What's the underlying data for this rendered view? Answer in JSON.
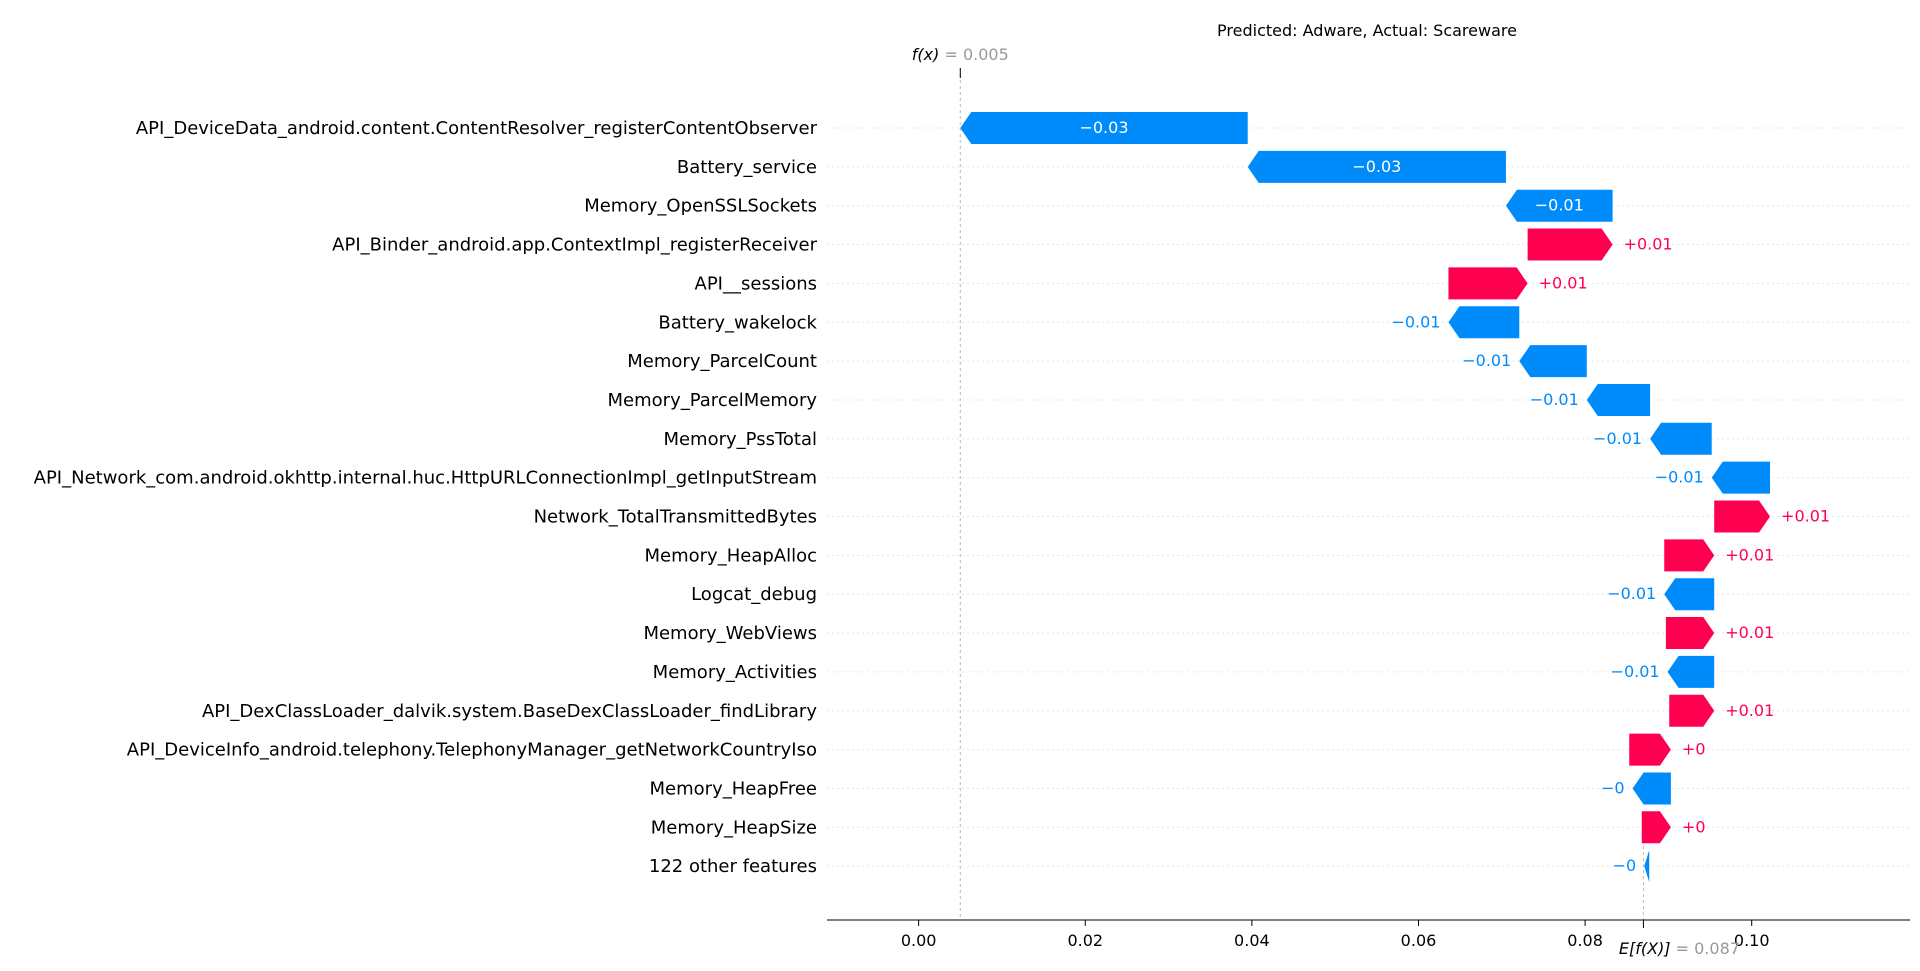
{
  "chart_data": {
    "type": "waterfall",
    "title": "Predicted: Adware, Actual: Scareware",
    "fx": {
      "label": "f(x)",
      "value": 0.005,
      "value_text": "0.005"
    },
    "base": {
      "label": "E[f(X)]",
      "value": 0.087,
      "value_text": "0.087"
    },
    "x_ticks": [
      0.0,
      0.02,
      0.04,
      0.06,
      0.08,
      0.1
    ],
    "x_tick_labels": [
      "0.00",
      "0.02",
      "0.04",
      "0.06",
      "0.08",
      "0.10"
    ],
    "xlim": [
      -0.011,
      0.119
    ],
    "colors": {
      "positive": "#ff0051",
      "negative": "#008bfb",
      "grid": "#cccccc",
      "muted": "#999999"
    },
    "features": [
      {
        "name": "API_DeviceData_android.content.ContentResolver_registerContentObserver",
        "start": 0.0395,
        "end": 0.005,
        "label": "−0.03"
      },
      {
        "name": "Battery_service",
        "start": 0.0705,
        "end": 0.0395,
        "label": "−0.03"
      },
      {
        "name": "Memory_OpenSSLSockets",
        "start": 0.0833,
        "end": 0.0705,
        "label": "−0.01"
      },
      {
        "name": "API_Binder_android.app.ContextImpl_registerReceiver",
        "start": 0.0731,
        "end": 0.0833,
        "label": "+0.01"
      },
      {
        "name": "API__sessions",
        "start": 0.0636,
        "end": 0.0731,
        "label": "+0.01"
      },
      {
        "name": "Battery_wakelock",
        "start": 0.0721,
        "end": 0.0636,
        "label": "−0.01"
      },
      {
        "name": "Memory_ParcelCount",
        "start": 0.0802,
        "end": 0.0721,
        "label": "−0.01"
      },
      {
        "name": "Memory_ParcelMemory",
        "start": 0.0878,
        "end": 0.0802,
        "label": "−0.01"
      },
      {
        "name": "Memory_PssTotal",
        "start": 0.0952,
        "end": 0.0878,
        "label": "−0.01"
      },
      {
        "name": "API_Network_com.android.okhttp.internal.huc.HttpURLConnectionImpl_getInputStream",
        "start": 0.1022,
        "end": 0.0952,
        "label": "−0.01"
      },
      {
        "name": "Network_TotalTransmittedBytes",
        "start": 0.0955,
        "end": 0.1022,
        "label": "+0.01"
      },
      {
        "name": "Memory_HeapAlloc",
        "start": 0.0895,
        "end": 0.0955,
        "label": "+0.01"
      },
      {
        "name": "Logcat_debug",
        "start": 0.0955,
        "end": 0.0895,
        "label": "−0.01"
      },
      {
        "name": "Memory_WebViews",
        "start": 0.0897,
        "end": 0.0955,
        "label": "+0.01"
      },
      {
        "name": "Memory_Activities",
        "start": 0.0955,
        "end": 0.0899,
        "label": "−0.01"
      },
      {
        "name": "API_DexClassLoader_dalvik.system.BaseDexClassLoader_findLibrary",
        "start": 0.0901,
        "end": 0.0955,
        "label": "+0.01"
      },
      {
        "name": "API_DeviceInfo_android.telephony.TelephonyManager_getNetworkCountryIso",
        "start": 0.0853,
        "end": 0.0903,
        "label": "+0"
      },
      {
        "name": "Memory_HeapFree",
        "start": 0.0903,
        "end": 0.0857,
        "label": "−0"
      },
      {
        "name": "Memory_HeapSize",
        "start": 0.0868,
        "end": 0.0903,
        "label": "+0"
      },
      {
        "name": "122 other features",
        "start": 0.0877,
        "end": 0.0871,
        "label": "−0"
      }
    ]
  }
}
